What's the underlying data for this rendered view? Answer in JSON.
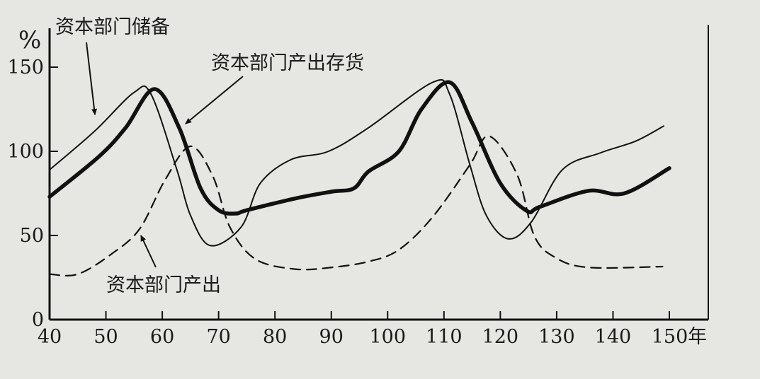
{
  "chart_data": {
    "type": "line",
    "title": "",
    "xlabel": "",
    "ylabel": "%",
    "x_unit": "年",
    "xlim": [
      40,
      150
    ],
    "ylim": [
      0,
      150
    ],
    "x_ticks": [
      40,
      50,
      60,
      70,
      80,
      90,
      100,
      110,
      120,
      130,
      140,
      150
    ],
    "x_tick_labels": [
      "40",
      "50",
      "60",
      "70",
      "80",
      "90",
      "100",
      "110",
      "120",
      "130",
      "140",
      "150年"
    ],
    "y_ticks": [
      0,
      50,
      100,
      150
    ],
    "y_tick_labels": [
      "0",
      "50",
      "100",
      "150"
    ],
    "grid": false,
    "series": [
      {
        "name": "资本部门储备",
        "style": "thin-solid",
        "points": [
          [
            40,
            89
          ],
          [
            48,
            112
          ],
          [
            55,
            135
          ],
          [
            58,
            134
          ],
          [
            62.6,
            89
          ],
          [
            65,
            62
          ],
          [
            68.5,
            44
          ],
          [
            74,
            55
          ],
          [
            77.4,
            81
          ],
          [
            82.8,
            95
          ],
          [
            89.5,
            100
          ],
          [
            96.6,
            114
          ],
          [
            108,
            141
          ],
          [
            111,
            134
          ],
          [
            114.6,
            92
          ],
          [
            117.5,
            62
          ],
          [
            121.4,
            48
          ],
          [
            125.5,
            58
          ],
          [
            131,
            89
          ],
          [
            137.7,
            99
          ],
          [
            144,
            106
          ],
          [
            149,
            115
          ]
        ]
      },
      {
        "name": "资本部门产出存货",
        "style": "thick-solid",
        "points": [
          [
            40,
            73
          ],
          [
            48.8,
            97
          ],
          [
            53.5,
            114
          ],
          [
            58.6,
            137
          ],
          [
            63,
            114
          ],
          [
            66.8,
            78
          ],
          [
            70,
            65
          ],
          [
            73,
            63
          ],
          [
            75,
            65
          ],
          [
            83.6,
            72
          ],
          [
            90,
            76
          ],
          [
            94,
            78
          ],
          [
            96.6,
            88
          ],
          [
            102,
            100
          ],
          [
            106,
            125
          ],
          [
            111,
            141
          ],
          [
            115,
            117
          ],
          [
            120,
            81
          ],
          [
            124.7,
            64.6
          ],
          [
            127,
            67
          ],
          [
            135.6,
            76.5
          ],
          [
            142,
            75
          ],
          [
            150,
            90
          ]
        ]
      },
      {
        "name": "资本部门产出",
        "style": "dashed",
        "points": [
          [
            40,
            27
          ],
          [
            45,
            27
          ],
          [
            51,
            39
          ],
          [
            56,
            54
          ],
          [
            60.5,
            83
          ],
          [
            65,
            103
          ],
          [
            69,
            85
          ],
          [
            72,
            55
          ],
          [
            76.5,
            36
          ],
          [
            83.6,
            30
          ],
          [
            90,
            31
          ],
          [
            96.6,
            34.5
          ],
          [
            102,
            41.5
          ],
          [
            108,
            61
          ],
          [
            114.6,
            92
          ],
          [
            118,
            109
          ],
          [
            123,
            86
          ],
          [
            126,
            50
          ],
          [
            129.7,
            37
          ],
          [
            135.6,
            31
          ],
          [
            148.8,
            31.5
          ]
        ]
      }
    ],
    "annotations": [
      "资本部门储备",
      "资本部门产出存货",
      "资本部门产出"
    ],
    "colors": {
      "ink": "#111111",
      "paper": "#e6e6e2"
    }
  }
}
